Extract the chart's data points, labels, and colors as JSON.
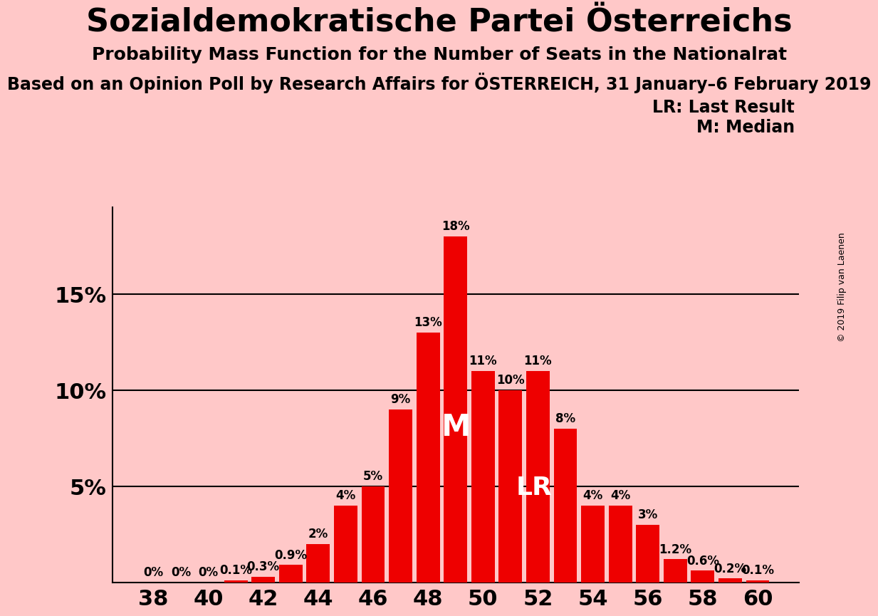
{
  "title": "Sozialdemokratische Partei Österreichs",
  "subtitle": "Probability Mass Function for the Number of Seats in the Nationalrat",
  "subtitle2": "Based on an Opinion Poll by Research Affairs for ÖSTERREICH, 31 January–6 February 2019",
  "copyright": "© 2019 Filip van Laenen",
  "legend_lr": "LR: Last Result",
  "legend_m": "M: Median",
  "background_color": "#ffc8c8",
  "bar_color": "#ee0000",
  "seats": [
    38,
    39,
    40,
    41,
    42,
    43,
    44,
    45,
    46,
    47,
    48,
    49,
    50,
    51,
    52,
    53,
    54,
    55,
    56,
    57,
    58,
    59,
    60
  ],
  "probs": [
    0.0,
    0.0,
    0.0,
    0.1,
    0.3,
    0.9,
    2.0,
    4.0,
    5.0,
    9.0,
    13.0,
    18.0,
    11.0,
    10.0,
    11.0,
    8.0,
    4.0,
    4.0,
    3.0,
    1.2,
    0.6,
    0.2,
    0.1
  ],
  "prob_labels": [
    "0%",
    "0%",
    "0%",
    "0.1%",
    "0.3%",
    "0.9%",
    "2%",
    "4%",
    "5%",
    "9%",
    "13%",
    "18%",
    "11%",
    "10%",
    "11%",
    "8%",
    "4%",
    "4%",
    "3%",
    "1.2%",
    "0.6%",
    "0.2%",
    "0.1%"
  ],
  "show_label": [
    false,
    false,
    false,
    true,
    true,
    true,
    true,
    true,
    true,
    true,
    true,
    true,
    true,
    true,
    true,
    true,
    true,
    true,
    true,
    true,
    true,
    true,
    true
  ],
  "zero_labels": [
    true,
    true,
    true,
    false,
    false,
    false,
    false,
    false,
    false,
    false,
    false,
    false,
    false,
    false,
    false,
    false,
    false,
    false,
    false,
    false,
    false,
    false,
    false
  ],
  "median_seat": 49,
  "lr_seat": 52,
  "ylim": [
    0,
    19.5
  ],
  "yticks": [
    0,
    5,
    10,
    15
  ],
  "ytick_labels": [
    "",
    "5%",
    "10%",
    "15%"
  ],
  "xticks": [
    38,
    40,
    42,
    44,
    46,
    48,
    50,
    52,
    54,
    56,
    58,
    60
  ],
  "title_fontsize": 32,
  "subtitle_fontsize": 18,
  "subtitle2_fontsize": 17,
  "label_fontsize": 12,
  "axis_fontsize": 22,
  "legend_fontsize": 17,
  "copyright_fontsize": 9,
  "median_label_fontsize": 30,
  "lr_label_fontsize": 26
}
